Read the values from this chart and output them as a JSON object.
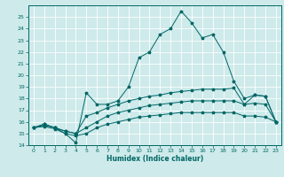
{
  "title": "",
  "xlabel": "Humidex (Indice chaleur)",
  "ylabel": "",
  "bg_color": "#ceeaea",
  "grid_color": "#ffffff",
  "line_color": "#006666",
  "xlim": [
    -0.5,
    23.5
  ],
  "ylim": [
    14,
    26
  ],
  "xticks": [
    0,
    1,
    2,
    3,
    4,
    5,
    6,
    7,
    8,
    9,
    10,
    11,
    12,
    13,
    14,
    15,
    16,
    17,
    18,
    19,
    20,
    21,
    22,
    23
  ],
  "yticks": [
    14,
    15,
    16,
    17,
    18,
    19,
    20,
    21,
    22,
    23,
    24,
    25
  ],
  "series": [
    [
      15.5,
      15.8,
      15.5,
      15.0,
      14.2,
      18.5,
      17.5,
      17.5,
      17.8,
      19.0,
      21.5,
      22.0,
      23.5,
      24.0,
      25.5,
      24.5,
      23.2,
      23.5,
      22.0,
      19.5,
      18.0,
      18.3,
      18.2,
      16.0
    ],
    [
      15.5,
      15.8,
      15.5,
      15.2,
      15.0,
      16.5,
      16.8,
      17.2,
      17.5,
      17.8,
      18.0,
      18.2,
      18.3,
      18.5,
      18.6,
      18.7,
      18.8,
      18.8,
      18.8,
      18.9,
      17.5,
      18.3,
      18.2,
      16.0
    ],
    [
      15.5,
      15.7,
      15.5,
      15.2,
      15.0,
      15.5,
      16.0,
      16.5,
      16.8,
      17.0,
      17.2,
      17.4,
      17.5,
      17.6,
      17.7,
      17.8,
      17.8,
      17.8,
      17.8,
      17.8,
      17.5,
      17.6,
      17.5,
      16.0
    ],
    [
      15.5,
      15.6,
      15.4,
      15.0,
      14.8,
      15.0,
      15.5,
      15.8,
      16.0,
      16.2,
      16.4,
      16.5,
      16.6,
      16.7,
      16.8,
      16.8,
      16.8,
      16.8,
      16.8,
      16.8,
      16.5,
      16.5,
      16.4,
      16.0
    ]
  ]
}
